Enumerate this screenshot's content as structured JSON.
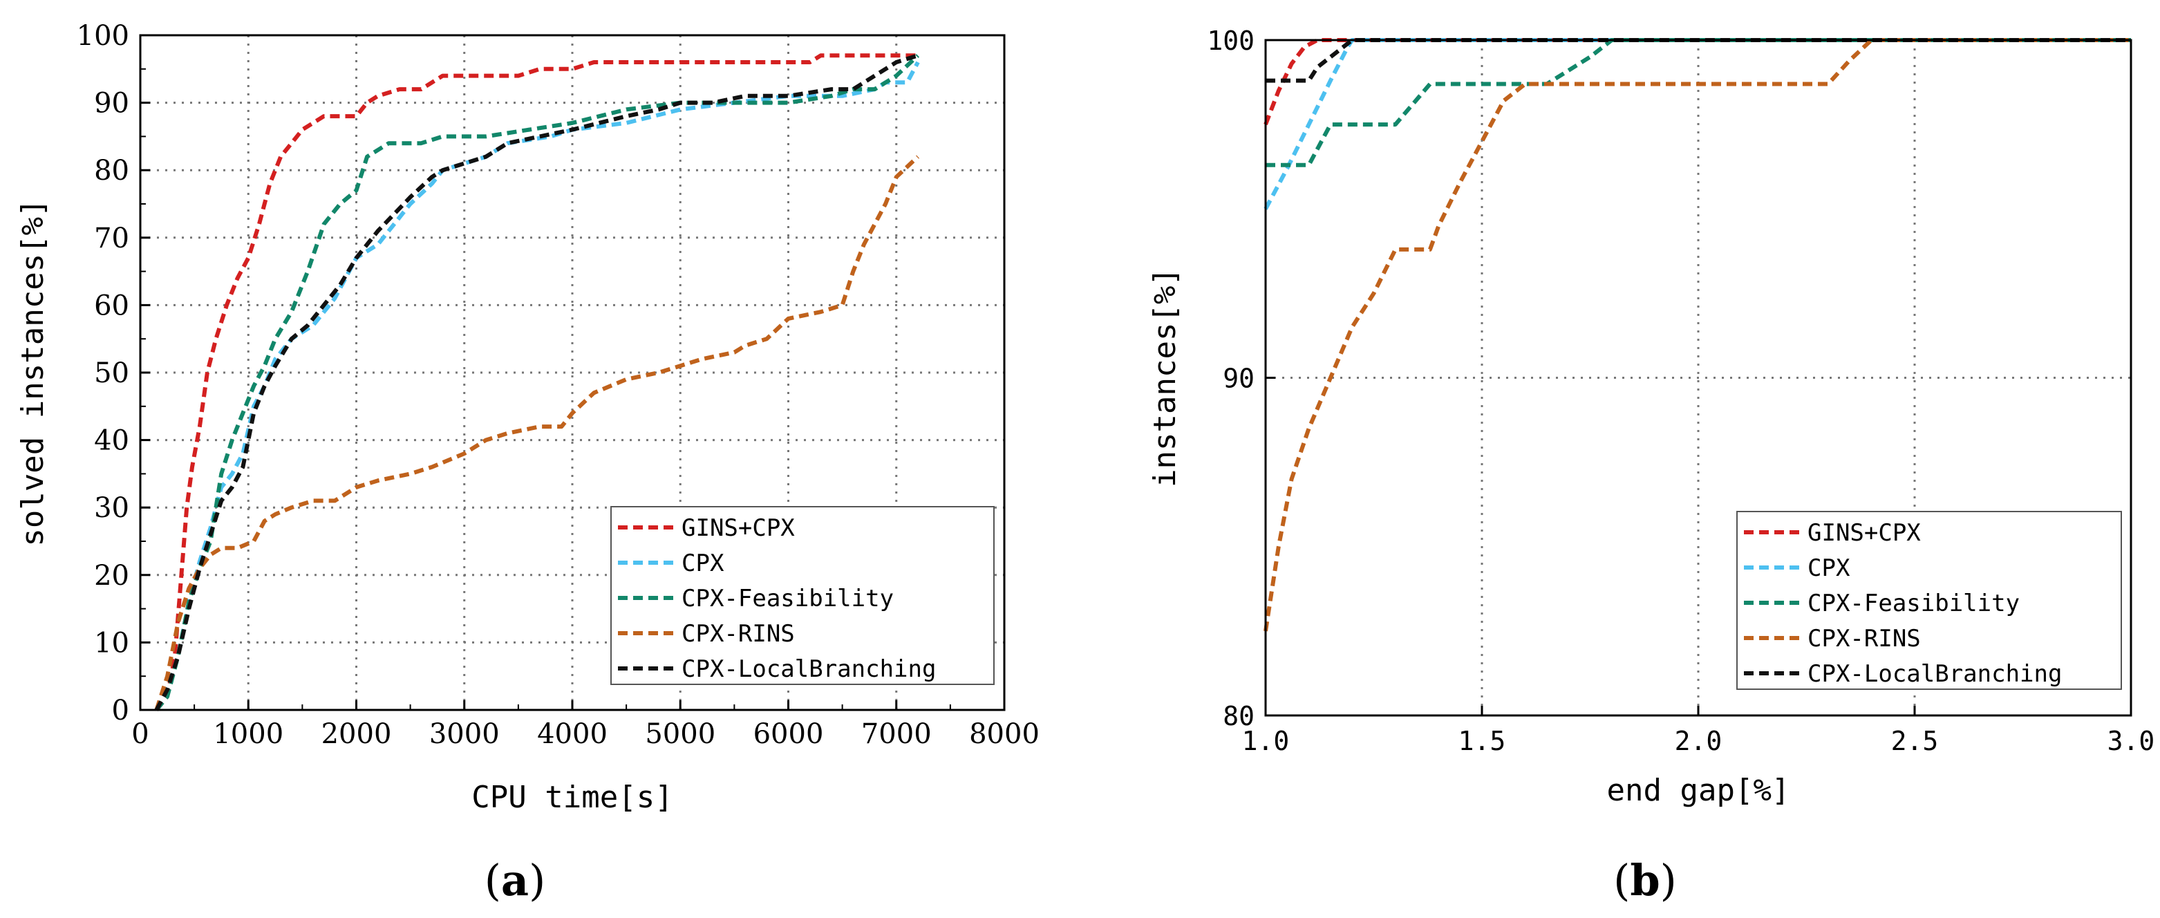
{
  "chart_data": [
    {
      "type": "line",
      "panel_label": "(a)",
      "panel_letter": "a",
      "xlabel": "CPU time[s]",
      "ylabel": "solved instances[%]",
      "xlim": [
        0,
        8000
      ],
      "ylim": [
        0,
        100
      ],
      "xticks": [
        0,
        1000,
        2000,
        3000,
        4000,
        5000,
        6000,
        7000,
        8000
      ],
      "yticks": [
        0,
        10,
        20,
        30,
        40,
        50,
        60,
        70,
        80,
        90,
        100
      ],
      "grid": true,
      "legend_position": "bottom-right",
      "series": [
        {
          "name": "GINS+CPX",
          "color": "#d42020",
          "x": [
            150,
            250,
            320,
            380,
            430,
            480,
            550,
            620,
            700,
            800,
            900,
            1000,
            1100,
            1200,
            1300,
            1400,
            1500,
            1600,
            1700,
            1800,
            1900,
            2000,
            2100,
            2200,
            2400,
            2600,
            2700,
            2800,
            3000,
            3200,
            3500,
            3700,
            4000,
            4200,
            4500,
            5000,
            5500,
            6000,
            6200,
            6300,
            6500,
            7000,
            7200
          ],
          "y": [
            0,
            2,
            8,
            20,
            30,
            36,
            42,
            50,
            55,
            60,
            64,
            67,
            72,
            78,
            82,
            84,
            86,
            87,
            88,
            88,
            88,
            88,
            90,
            91,
            92,
            92,
            93,
            94,
            94,
            94,
            94,
            95,
            95,
            96,
            96,
            96,
            96,
            96,
            96,
            97,
            97,
            97,
            97
          ]
        },
        {
          "name": "CPX",
          "color": "#4dc0f0",
          "x": [
            150,
            250,
            350,
            450,
            550,
            650,
            750,
            850,
            950,
            1050,
            1150,
            1250,
            1400,
            1600,
            1800,
            2000,
            2200,
            2500,
            2700,
            2800,
            3000,
            3200,
            3400,
            3800,
            4000,
            4500,
            5000,
            5500,
            6000,
            6500,
            6800,
            6900,
            7100,
            7200
          ],
          "y": [
            0,
            3,
            8,
            16,
            22,
            27,
            33,
            35,
            38,
            45,
            48,
            52,
            55,
            57,
            61,
            67,
            69,
            75,
            78,
            80,
            81,
            82,
            84,
            85,
            86,
            87,
            89,
            90,
            91,
            91,
            92,
            93,
            93,
            96
          ]
        },
        {
          "name": "CPX-Feasibility",
          "color": "#12876a",
          "x": [
            150,
            250,
            350,
            450,
            550,
            650,
            750,
            850,
            950,
            1050,
            1150,
            1250,
            1400,
            1550,
            1700,
            1850,
            2000,
            2100,
            2300,
            2600,
            2800,
            3200,
            3600,
            4000,
            4500,
            5000,
            5500,
            6000,
            6400,
            6600,
            6800,
            7000,
            7200
          ],
          "y": [
            0,
            2,
            8,
            16,
            21,
            25,
            35,
            40,
            44,
            48,
            51,
            55,
            59,
            65,
            72,
            75,
            77,
            82,
            84,
            84,
            85,
            85,
            86,
            87,
            89,
            90,
            90,
            90,
            91,
            92,
            92,
            94,
            97
          ]
        },
        {
          "name": "CPX-RINS",
          "color": "#c0621c",
          "x": [
            150,
            250,
            350,
            450,
            550,
            650,
            750,
            900,
            1050,
            1150,
            1250,
            1400,
            1600,
            1800,
            1900,
            2000,
            2200,
            2500,
            2700,
            3000,
            3200,
            3400,
            3700,
            3900,
            4000,
            4200,
            4500,
            4800,
            5000,
            5200,
            5500,
            5600,
            5800,
            6000,
            6300,
            6500,
            6600,
            6700,
            6900,
            7000,
            7200
          ],
          "y": [
            0,
            5,
            13,
            18,
            21,
            23,
            24,
            24,
            25,
            28,
            29,
            30,
            31,
            31,
            32,
            33,
            34,
            35,
            36,
            38,
            40,
            41,
            42,
            42,
            44,
            47,
            49,
            50,
            51,
            52,
            53,
            54,
            55,
            58,
            59,
            60,
            65,
            69,
            75,
            79,
            82
          ]
        },
        {
          "name": "CPX-LocalBranching",
          "color": "#111111",
          "x": [
            150,
            250,
            350,
            450,
            550,
            650,
            750,
            850,
            950,
            1050,
            1150,
            1250,
            1400,
            1550,
            1700,
            1850,
            2000,
            2200,
            2500,
            2700,
            2800,
            3000,
            3200,
            3400,
            3700,
            4000,
            4500,
            4800,
            5000,
            5300,
            5600,
            6000,
            6400,
            6600,
            6800,
            7000,
            7200
          ],
          "y": [
            0,
            3,
            8,
            15,
            21,
            26,
            31,
            33,
            36,
            44,
            48,
            51,
            55,
            57,
            60,
            63,
            67,
            71,
            76,
            79,
            80,
            81,
            82,
            84,
            85,
            86,
            88,
            89,
            90,
            90,
            91,
            91,
            92,
            92,
            94,
            96,
            97
          ]
        }
      ]
    },
    {
      "type": "line",
      "panel_label": "(b)",
      "panel_letter": "b",
      "xlabel": "end gap[%]",
      "ylabel": "instances[%]",
      "xlim": [
        1.0,
        3.0
      ],
      "ylim": [
        80,
        100
      ],
      "xticks": [
        "1.0",
        "1.5",
        "2.0",
        "2.5",
        "3.0"
      ],
      "yticks": [
        80,
        90,
        100
      ],
      "grid": true,
      "legend_position": "bottom-right",
      "series": [
        {
          "name": "GINS+CPX",
          "color": "#d42020",
          "x": [
            1.0,
            1.03,
            1.06,
            1.09,
            1.12,
            3.0
          ],
          "y": [
            97.5,
            98.5,
            99.3,
            99.8,
            100,
            100
          ]
        },
        {
          "name": "CPX",
          "color": "#4dc0f0",
          "x": [
            1.0,
            1.05,
            1.1,
            1.15,
            1.19,
            1.2,
            3.0
          ],
          "y": [
            95,
            96.2,
            97.5,
            98.8,
            99.8,
            100,
            100
          ]
        },
        {
          "name": "CPX-Feasibility",
          "color": "#12876a",
          "x": [
            1.0,
            1.1,
            1.15,
            1.25,
            1.3,
            1.38,
            1.4,
            1.45,
            1.65,
            1.75,
            1.8,
            3.0
          ],
          "y": [
            96.3,
            96.3,
            97.5,
            97.5,
            97.5,
            98.7,
            98.7,
            98.7,
            98.7,
            99.5,
            100,
            100
          ]
        },
        {
          "name": "CPX-RINS",
          "color": "#c0621c",
          "x": [
            1.0,
            1.03,
            1.06,
            1.1,
            1.15,
            1.2,
            1.25,
            1.3,
            1.38,
            1.4,
            1.45,
            1.5,
            1.55,
            1.6,
            2.3,
            2.35,
            2.4,
            3.0
          ],
          "y": [
            82.5,
            85,
            87,
            88.5,
            90,
            91.5,
            92.5,
            93.8,
            93.8,
            94.5,
            95.8,
            97,
            98.2,
            98.7,
            98.7,
            99.4,
            100,
            100
          ]
        },
        {
          "name": "CPX-LocalBranching",
          "color": "#111111",
          "x": [
            1.0,
            1.1,
            1.12,
            1.17,
            1.2,
            3.0
          ],
          "y": [
            98.8,
            98.8,
            99.2,
            99.7,
            100,
            100
          ]
        }
      ]
    }
  ]
}
